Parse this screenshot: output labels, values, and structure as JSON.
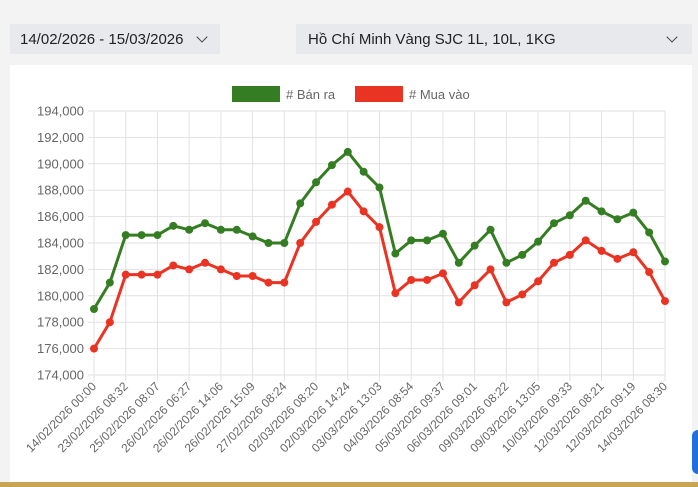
{
  "filters": {
    "date_range": "14/02/2026 - 15/03/2026",
    "product": "Hồ Chí Minh Vàng SJC 1L, 10L, 1KG"
  },
  "chart_data": {
    "type": "line",
    "legend_position": "top",
    "grid": true,
    "ylim": [
      174000,
      194000
    ],
    "yticks": [
      "174,000",
      "176,000",
      "178,000",
      "180,000",
      "182,000",
      "184,000",
      "186,000",
      "188,000",
      "190,000",
      "192,000",
      "194,000"
    ],
    "xtick_labels": [
      "14/02/2026 00:00",
      "23/02/2026 08:32",
      "25/02/2026 08:07",
      "26/02/2026 06:27",
      "26/02/2026 14:06",
      "26/02/2026 15:09",
      "27/02/2026 08:24",
      "02/03/2026 08:20",
      "02/03/2026 14:24",
      "03/03/2026 13:03",
      "04/03/2026 08:54",
      "05/03/2026 09:37",
      "06/03/2026 09:01",
      "09/03/2026 08:22",
      "09/03/2026 13:05",
      "10/03/2026 09:33",
      "12/03/2026 08:21",
      "12/03/2026 09:19",
      "14/03/2026 08:30"
    ],
    "series": [
      {
        "name": "# Bán ra",
        "color": "#357d22",
        "values": [
          179000,
          181000,
          184600,
          184600,
          184600,
          185300,
          185000,
          185500,
          185000,
          185000,
          184500,
          184000,
          184000,
          187000,
          188600,
          189900,
          190900,
          189400,
          188200,
          183200,
          184200,
          184200,
          184700,
          182500,
          183800,
          185000,
          182500,
          183100,
          184100,
          185500,
          186100,
          187200,
          186400,
          185800,
          186300,
          184800,
          182600
        ]
      },
      {
        "name": "# Mua vào",
        "color": "#e93323",
        "values": [
          176000,
          178000,
          181600,
          181600,
          181600,
          182300,
          182000,
          182500,
          182000,
          181500,
          181500,
          181000,
          181000,
          184000,
          185600,
          186900,
          187900,
          186400,
          185200,
          180200,
          181200,
          181200,
          181700,
          179500,
          180800,
          182000,
          179500,
          180100,
          181100,
          182500,
          183100,
          184200,
          183400,
          182800,
          183300,
          181800,
          179600
        ]
      }
    ]
  }
}
